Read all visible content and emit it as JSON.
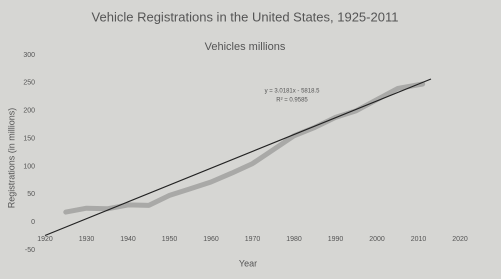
{
  "chart_data": {
    "type": "line",
    "title": "Vehicle Registrations in the United States, 1925-2011",
    "subtitle": "Vehicles millions",
    "x_label": "Year",
    "y_label": "Registrations (in millions)",
    "trendline_equation": "y = 3.0181x - 5818.5",
    "trendline_r2": "R² = 0.9585",
    "x": [
      1925,
      1930,
      1935,
      1940,
      1945,
      1950,
      1955,
      1960,
      1965,
      1970,
      1975,
      1980,
      1985,
      1990,
      1995,
      2000,
      2005,
      2011
    ],
    "series": [
      {
        "color": "#a9a9a7",
        "values": [
          18,
          25,
          24,
          31,
          30,
          48,
          60,
          72,
          88,
          105,
          130,
          155,
          170,
          188,
          200,
          220,
          240,
          248
        ]
      }
    ],
    "trendline": {
      "color": "#222222",
      "x": [
        1920,
        2013
      ],
      "values": [
        -24,
        257
      ]
    },
    "xlim": [
      1920,
      2020
    ],
    "xticks": [
      1920,
      1930,
      1940,
      1950,
      1960,
      1970,
      1980,
      1990,
      2000,
      2010,
      2020
    ],
    "ylim": [
      -50,
      300
    ],
    "yticks": [
      -50,
      0,
      50,
      100,
      150,
      200,
      250,
      300
    ]
  }
}
